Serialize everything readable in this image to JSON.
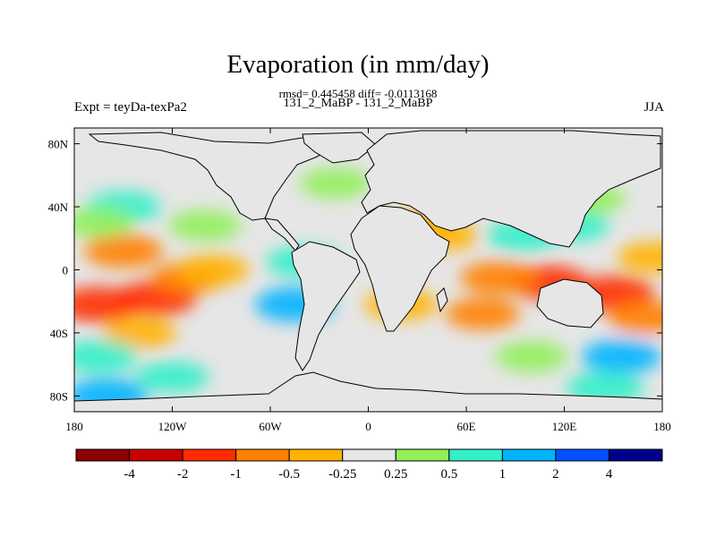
{
  "chart_data": {
    "type": "heatmap",
    "title": "Evaporation (in mm/day)",
    "stats_line": "rmsd= 0.445458 diff= -0.0113168",
    "subtitle": "131_2_MaBP - 131_2_MaBP",
    "left_label": "Expt = teyDa-texPa2",
    "right_label": "JJA",
    "x_ticks": [
      "180",
      "120W",
      "60W",
      "0",
      "60E",
      "120E",
      "180"
    ],
    "y_ticks": [
      "80N",
      "40N",
      "0",
      "40S",
      "80S"
    ],
    "xlim": [
      -180,
      180
    ],
    "ylim": [
      -90,
      90
    ],
    "colorbar": {
      "colors": [
        "#8b0000",
        "#c80000",
        "#ff2b00",
        "#ff7f00",
        "#ffb300",
        "#e6e6e6",
        "#8ff05a",
        "#32f0c8",
        "#00b4ff",
        "#0050ff",
        "#00008c"
      ],
      "labels": [
        "-4",
        "-2",
        "-1",
        "-0.5",
        "-0.25",
        "0.25",
        "0.5",
        "1",
        "2",
        "4"
      ]
    },
    "fields": [
      {
        "lon": -150,
        "lat": 12,
        "value": -1.0
      },
      {
        "lon": -130,
        "lat": -18,
        "value": -1.2
      },
      {
        "lon": -165,
        "lat": -22,
        "value": -1.3
      },
      {
        "lon": -110,
        "lat": -5,
        "value": -0.6
      },
      {
        "lon": -140,
        "lat": -40,
        "value": -0.5
      },
      {
        "lon": -95,
        "lat": 0,
        "value": -0.4
      },
      {
        "lon": 110,
        "lat": -8,
        "value": -1.1
      },
      {
        "lon": 150,
        "lat": -15,
        "value": -1.3
      },
      {
        "lon": 80,
        "lat": -5,
        "value": -0.9
      },
      {
        "lon": 170,
        "lat": -30,
        "value": -0.7
      },
      {
        "lon": 70,
        "lat": -28,
        "value": -0.6
      },
      {
        "lon": 20,
        "lat": -22,
        "value": -0.5
      },
      {
        "lon": 45,
        "lat": 22,
        "value": -0.5
      },
      {
        "lon": 30,
        "lat": 28,
        "value": -0.3
      },
      {
        "lon": 175,
        "lat": 8,
        "value": -0.5
      },
      {
        "lon": -150,
        "lat": 40,
        "value": 0.6
      },
      {
        "lon": -165,
        "lat": 30,
        "value": 0.4
      },
      {
        "lon": -100,
        "lat": 28,
        "value": 0.4
      },
      {
        "lon": -40,
        "lat": 5,
        "value": 0.5
      },
      {
        "lon": -45,
        "lat": -22,
        "value": 1.1
      },
      {
        "lon": 125,
        "lat": 28,
        "value": 0.5
      },
      {
        "lon": 95,
        "lat": 22,
        "value": 0.6
      },
      {
        "lon": -165,
        "lat": -55,
        "value": 0.9
      },
      {
        "lon": -120,
        "lat": -68,
        "value": 0.5
      },
      {
        "lon": -160,
        "lat": -80,
        "value": 1.2
      },
      {
        "lon": 155,
        "lat": -55,
        "value": 1.0
      },
      {
        "lon": 145,
        "lat": -75,
        "value": 0.9
      },
      {
        "lon": 100,
        "lat": -55,
        "value": 0.4
      },
      {
        "lon": 35,
        "lat": 62,
        "value": 0.3
      },
      {
        "lon": -20,
        "lat": 55,
        "value": 0.3
      },
      {
        "lon": 135,
        "lat": 45,
        "value": 0.4
      }
    ],
    "grid": false
  }
}
